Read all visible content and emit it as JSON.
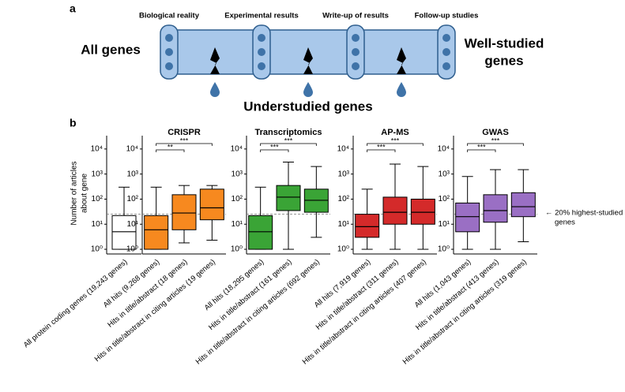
{
  "panel_labels": {
    "a": "a",
    "b": "b"
  },
  "diagram": {
    "stages": [
      "Biological reality",
      "Experimental results",
      "Write-up of results",
      "Follow-up studies"
    ],
    "left": "All genes",
    "right": [
      "Well-studied",
      "genes"
    ],
    "bottom": "Understudied genes"
  },
  "y_label": [
    "Number of articles",
    "about gene"
  ],
  "threshold_label": [
    "← 20% highest-studied",
    "genes"
  ],
  "chart_data": [
    {
      "type": "box",
      "color": "#ffffff",
      "log": true,
      "ylim": [
        0.65,
        22000
      ],
      "yticks": [
        {
          "value": 1,
          "label": "10⁰"
        },
        {
          "value": 10,
          "label": "10¹"
        },
        {
          "value": 100,
          "label": "10²"
        },
        {
          "value": 1000,
          "label": "10³"
        },
        {
          "value": 10000,
          "label": "10⁴"
        }
      ],
      "threshold": 25,
      "categories": [
        "All protein coding genes (19,243 genes)"
      ],
      "boxes": [
        {
          "whislo": 1,
          "q1": 1,
          "med": 5,
          "q3": 22,
          "whishi": 300
        }
      ]
    },
    {
      "type": "box",
      "title": "CRISPR",
      "color": "#f7891f",
      "log": true,
      "ylim": [
        0.65,
        22000
      ],
      "yticks": [
        {
          "value": 1,
          "label": "10⁰"
        },
        {
          "value": 10,
          "label": "10¹"
        },
        {
          "value": 100,
          "label": "10²"
        },
        {
          "value": 1000,
          "label": "10³"
        },
        {
          "value": 10000,
          "label": "10⁴"
        }
      ],
      "threshold": 25,
      "significance": [
        "**",
        "***"
      ],
      "categories": [
        "All hits (9,268 genes)",
        "Hits in title/abstract (18 genes)",
        "Hits in title/abstract in citing articles (19 genes)"
      ],
      "boxes": [
        {
          "whislo": 1,
          "q1": 1,
          "med": 6,
          "q3": 22,
          "whishi": 300
        },
        {
          "whislo": 1.8,
          "q1": 6,
          "med": 28,
          "q3": 150,
          "whishi": 350
        },
        {
          "whislo": 2.3,
          "q1": 15,
          "med": 45,
          "q3": 250,
          "whishi": 350
        }
      ]
    },
    {
      "type": "box",
      "title": "Transcriptomics",
      "color": "#3aa436",
      "log": true,
      "ylim": [
        0.65,
        22000
      ],
      "yticks": [
        {
          "value": 1,
          "label": "10⁰"
        },
        {
          "value": 10,
          "label": "10¹"
        },
        {
          "value": 100,
          "label": "10²"
        },
        {
          "value": 1000,
          "label": "10³"
        },
        {
          "value": 10000,
          "label": "10⁴"
        }
      ],
      "threshold": 25,
      "significance": [
        "***",
        "***"
      ],
      "categories": [
        "All hits (18,295 genes)",
        "Hits in title/abstract (161 genes)",
        "Hits in title/abstract in citing articles (692 genes)"
      ],
      "boxes": [
        {
          "whislo": 1,
          "q1": 1,
          "med": 5,
          "q3": 22,
          "whishi": 300
        },
        {
          "whislo": 1,
          "q1": 35,
          "med": 120,
          "q3": 350,
          "whishi": 3000
        },
        {
          "whislo": 3,
          "q1": 30,
          "med": 90,
          "q3": 250,
          "whishi": 2000
        }
      ]
    },
    {
      "type": "box",
      "title": "AP-MS",
      "color": "#d42a2a",
      "log": true,
      "ylim": [
        0.65,
        22000
      ],
      "yticks": [
        {
          "value": 1,
          "label": "10⁰"
        },
        {
          "value": 10,
          "label": "10¹"
        },
        {
          "value": 100,
          "label": "10²"
        },
        {
          "value": 1000,
          "label": "10³"
        },
        {
          "value": 10000,
          "label": "10⁴"
        }
      ],
      "threshold": 25,
      "significance": [
        "***",
        "***"
      ],
      "categories": [
        "All hits (7,919 genes)",
        "Hits in title/abstract (311 genes)",
        "Hits in title/abstract in citing articles (407 genes)"
      ],
      "boxes": [
        {
          "whislo": 1,
          "q1": 3,
          "med": 8,
          "q3": 25,
          "whishi": 250
        },
        {
          "whislo": 1,
          "q1": 10,
          "med": 30,
          "q3": 120,
          "whishi": 2500
        },
        {
          "whislo": 1,
          "q1": 10,
          "med": 30,
          "q3": 100,
          "whishi": 2000
        }
      ]
    },
    {
      "type": "box",
      "title": "GWAS",
      "color": "#9a6fc4",
      "log": true,
      "ylim": [
        0.65,
        22000
      ],
      "yticks": [
        {
          "value": 1,
          "label": "10⁰"
        },
        {
          "value": 10,
          "label": "10¹"
        },
        {
          "value": 100,
          "label": "10²"
        },
        {
          "value": 1000,
          "label": "10³"
        },
        {
          "value": 10000,
          "label": "10⁴"
        }
      ],
      "threshold": 25,
      "significance": [
        "***",
        "***"
      ],
      "categories": [
        "All hits (1,043 genes)",
        "Hits in title/abstract (413 genes)",
        "Hits in title/abstract in citing articles (319 genes)"
      ],
      "boxes": [
        {
          "whislo": 1,
          "q1": 5,
          "med": 20,
          "q3": 70,
          "whishi": 800
        },
        {
          "whislo": 1,
          "q1": 12,
          "med": 35,
          "q3": 150,
          "whishi": 1500
        },
        {
          "whislo": 2,
          "q1": 20,
          "med": 50,
          "q3": 180,
          "whishi": 1500
        }
      ]
    }
  ]
}
